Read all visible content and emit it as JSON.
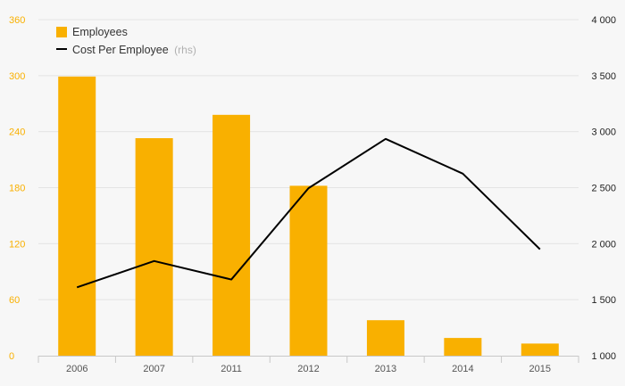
{
  "colors": {
    "bar": "#f9b000",
    "line": "#000000",
    "left_axis_text": "#f9b000",
    "grid": "#e4e4e4",
    "background": "#f7f7f7"
  },
  "legend": {
    "items": [
      {
        "icon": "orange-square-swatch-icon",
        "label": "Employees"
      },
      {
        "icon": "black-line-swatch-icon",
        "label": "Cost Per Employee",
        "note": "(rhs)"
      }
    ],
    "placement": "top-left"
  },
  "chart_data": {
    "type": "bar",
    "categories": [
      "2006",
      "2007",
      "2011",
      "2012",
      "2013",
      "2014",
      "2015"
    ],
    "series": [
      {
        "name": "Employees",
        "type": "bar",
        "axis": "left",
        "values": [
          299,
          233,
          258,
          182,
          38,
          19,
          13
        ]
      },
      {
        "name": "Cost Per Employee",
        "type": "line",
        "axis": "right",
        "values": [
          1610,
          1845,
          1680,
          2495,
          2935,
          2625,
          1950
        ]
      }
    ],
    "y_left": {
      "lim": [
        0,
        360
      ],
      "ticks": [
        "0",
        "60",
        "120",
        "180",
        "240",
        "300",
        "360"
      ]
    },
    "y_right": {
      "lim": [
        1000,
        4000
      ],
      "ticks": [
        "1 000",
        "1 500",
        "2 000",
        "2 500",
        "3 000",
        "3 500",
        "4 000"
      ]
    },
    "grid": true,
    "legend": "top-left"
  }
}
